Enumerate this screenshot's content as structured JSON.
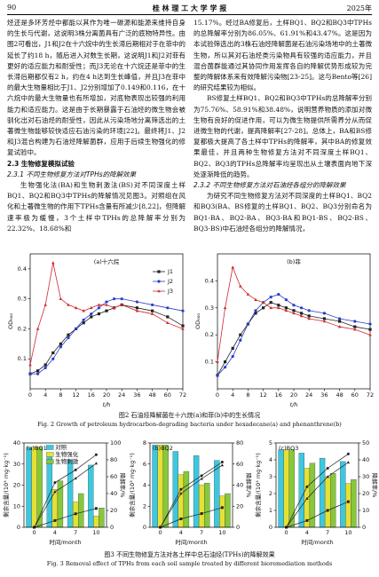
{
  "header": {
    "page": "90",
    "journal": "桂 林 理 工 大 学 学 报",
    "year": "2025年"
  },
  "body": {
    "left_para_1": "烃还是多环芳烃中都能以其作为唯一碳源和能源来维持自身的生长与代谢，这说明3株分离菌具有广泛的底物特异性。由图2可看出，J1和J2在十六烷中的生长滞后期相对于在菲中的延长了约18 h，随后进入对数生长期，这说明J1和J2对菲有更好的适应能力和耐受性；而J3无论在十六烷还是菲中的生长滞后期都仅有2 h，约在4 h达到生长峰值，并且J3在菲中的最大生物量相比于J1、J2分别增加了0.149和0.116，在十六烷中的最大生物量也有所增加，对底物表现出较强的利用能力和适应能力。这是由于长期暴露于石油烃的微生物会被驯化出对石油烃的耐受性，因此从污染场地分离筛选出的土著微生物能够较快适应石油污染的环境[22]。最终将J1、J2和J3混合构建为石油烃降解菌群，应用于后续生物强化的修复试验中。",
    "section_2_3": "2.3 生物修复模拟试验",
    "subsection_2_3_1": "2.3.1 不同生物修复方法对TPHs的降解效果",
    "left_para_2": "生物强化法(BA)和生物刺激法(BS)对不同深度土样BQ1、BQ2和BQ3中TPHs的降解情况见图3。对照组在风化和土著微生物的作用下TPHs含量有所减少[8,22]，但降解速率极为缓慢，3个土样中TPHs的总降解率分别为22.32%、18.68%和",
    "right_para_1": "15.17%。经过BA修复后，土样BQ1、BQ2和BQ3中TPHs的总降解率分别为86.05%、61.91%和43.47%。这是因为本试验筛选出的3株石油烃降解菌是石油污染场地中的土著微生物，所以其对石油烃类污染物具有较强的适应能力，并且混合菌群能通过其协同作用发挥各自的降解优势形成较为完整的降解体系来有效降解污染物[23-25]。这与Bento等[26]的研究结果较为相似。",
    "right_para_2": "BS修复土样BQ1、BQ2和BQ3中TPHs的总降解率分别为75.76%、58.91%和38.48%，说明营养物质的添加对微生物有良好的促进作用，可以为微生物提供所需养分从而促进微生物的代谢，提高降解率[27-28]。总体上，BA和BS修复都极大提高了各土样中TPHs的降解率，其中BA的修复效果最佳，并且两种生物修复方法对不同深度土样BQ1、BQ2、BQ3的TPHs总降解率均呈现出从土壤表面向地下深处逐渐降低的趋势。",
    "subsection_2_3_2": "2.3.2 不同生物修复方法对石油烃各组分的降解效果",
    "right_para_3": "为研究不同生物修复方法对不同深度的土样BQ1、BQ2和BQ3(BA、BS修复的土样BQ1、BQ2、BQ3分别命名为BQ1-BA、BQ2-BA、BQ3-BA和BQ1-BS、BQ2-BS、BQ3-BS)中石油烃各组分的降解情况，"
  },
  "captions": {
    "fig2_cn": "图2 石油烃降解菌在十六烷(a)和菲(b)中的生长情况",
    "fig2_en": "Fig. 2 Growth of petroleum hydrocarbon-degrading bacteria under hexadecane(a) and phenanthrene(b)",
    "fig3_cn": "图3 不同生物修复方法对各土样中总石油烃(TPHs)的降解效果",
    "fig3_en": "Fig. 3 Removal effect of TPHs from each soil sample treated by different bioremediation methods"
  },
  "chart_data": [
    {
      "type": "line",
      "title": "(a)十六烷",
      "x_label": "t/h",
      "y_label": "OD₆₀₀",
      "x": [
        0,
        2,
        4,
        6,
        8,
        10,
        12,
        14,
        16,
        18,
        20,
        22,
        24,
        36,
        48,
        60,
        72
      ],
      "xlim": [
        0,
        72
      ],
      "xticks": [
        0,
        4,
        8,
        12,
        16,
        20,
        24,
        36,
        48,
        60,
        72
      ],
      "ylim": [
        0,
        0.45
      ],
      "yticks": [
        0.1,
        0.2,
        0.3,
        0.4
      ],
      "legend": "upper right",
      "series": [
        {
          "name": "J1",
          "color": "#222222",
          "marker": "square",
          "values": [
            0.05,
            0.06,
            0.08,
            0.12,
            0.15,
            0.18,
            0.2,
            0.22,
            0.24,
            0.25,
            0.26,
            0.27,
            0.28,
            0.27,
            0.26,
            0.24,
            0.21
          ]
        },
        {
          "name": "J2",
          "color": "#2a3cc8",
          "marker": "circle",
          "values": [
            0.05,
            0.05,
            0.07,
            0.1,
            0.14,
            0.17,
            0.2,
            0.23,
            0.25,
            0.27,
            0.29,
            0.3,
            0.3,
            0.29,
            0.28,
            0.27,
            0.26
          ]
        },
        {
          "name": "J3",
          "color": "#d0282c",
          "marker": "triangle",
          "values": [
            0.08,
            0.2,
            0.28,
            0.42,
            0.3,
            0.28,
            0.27,
            0.26,
            0.27,
            0.28,
            0.28,
            0.27,
            0.28,
            0.26,
            0.25,
            0.22,
            0.2
          ]
        }
      ]
    },
    {
      "type": "line",
      "title": "(b)菲",
      "x_label": "t/h",
      "y_label": "OD₆₀₀",
      "x": [
        0,
        2,
        4,
        6,
        8,
        10,
        12,
        14,
        16,
        18,
        20,
        22,
        24,
        36,
        48,
        60,
        72
      ],
      "xlim": [
        0,
        72
      ],
      "xticks": [
        0,
        4,
        8,
        12,
        16,
        20,
        24,
        36,
        48,
        60,
        72
      ],
      "ylim": [
        0,
        0.5
      ],
      "yticks": [
        0.1,
        0.2,
        0.3,
        0.4
      ],
      "series": [
        {
          "color": "#222222",
          "marker": "square",
          "values": [
            0.05,
            0.1,
            0.15,
            0.2,
            0.24,
            0.28,
            0.3,
            0.32,
            0.31,
            0.3,
            0.29,
            0.28,
            0.27,
            0.26,
            0.25,
            0.23,
            0.22
          ]
        },
        {
          "color": "#2a3cc8",
          "marker": "circle",
          "values": [
            0.05,
            0.08,
            0.12,
            0.18,
            0.24,
            0.29,
            0.32,
            0.34,
            0.35,
            0.33,
            0.31,
            0.3,
            0.29,
            0.28,
            0.26,
            0.25,
            0.24
          ]
        },
        {
          "color": "#d0282c",
          "marker": "triangle",
          "values": [
            0.1,
            0.3,
            0.45,
            0.38,
            0.35,
            0.33,
            0.32,
            0.3,
            0.3,
            0.29,
            0.28,
            0.27,
            0.26,
            0.25,
            0.23,
            0.22,
            0.2
          ]
        }
      ]
    },
    {
      "type": "bar_line",
      "title": "(a)BQ1",
      "x_label": "时间/month",
      "y_label": "剩余含量/(10³ mg·kg⁻¹)",
      "y2_label": "降解率/%",
      "categories": [
        "0",
        "4",
        "7",
        "10"
      ],
      "ylim": [
        0,
        40
      ],
      "yticks": [
        0,
        10,
        20,
        30,
        40
      ],
      "y2lim": [
        0,
        100
      ],
      "y2ticks": [
        0,
        20,
        40,
        60,
        80,
        100
      ],
      "legend": "upper left",
      "series": [
        {
          "name": "对照",
          "color": "#3cc8e0",
          "values": [
            38,
            35,
            32,
            29.5
          ]
        },
        {
          "name": "生物强化",
          "color": "#e6e036",
          "values": [
            38,
            18,
            12,
            5.3
          ]
        },
        {
          "name": "生物刺激",
          "color": "#86c83a",
          "values": [
            38,
            22,
            16,
            9.2
          ]
        },
        {
          "axis": "y2",
          "color": "#222222",
          "marker": "square",
          "values": [
            0,
            8,
            16,
            22.32
          ]
        },
        {
          "axis": "y2",
          "color": "#222222",
          "marker": "circle",
          "values": [
            0,
            53,
            68,
            86.05
          ]
        },
        {
          "axis": "y2",
          "color": "#222222",
          "marker": "triangle",
          "values": [
            0,
            42,
            58,
            75.76
          ]
        }
      ]
    },
    {
      "type": "bar_line",
      "title": "(b)BQ2",
      "x_label": "时间/month",
      "y_label": "剩余含量/(10³ mg·kg⁻¹)",
      "y2_label": "降解率/%",
      "categories": [
        "0",
        "4",
        "7",
        "10"
      ],
      "ylim": [
        0,
        8
      ],
      "yticks": [
        0,
        2,
        4,
        6,
        8
      ],
      "y2lim": [
        0,
        80
      ],
      "y2ticks": [
        0,
        20,
        40,
        60,
        80
      ],
      "series": [
        {
          "color": "#3cc8e0",
          "values": [
            7.8,
            7.2,
            6.8,
            6.34
          ]
        },
        {
          "color": "#e6e036",
          "values": [
            7.8,
            5,
            4,
            2.97
          ]
        },
        {
          "color": "#86c83a",
          "values": [
            7.8,
            5.3,
            4.2,
            3.2
          ]
        },
        {
          "axis": "y2",
          "color": "#222222",
          "marker": "square",
          "values": [
            0,
            8,
            13,
            18.68
          ]
        },
        {
          "axis": "y2",
          "color": "#222222",
          "marker": "circle",
          "values": [
            0,
            36,
            49,
            61.91
          ]
        },
        {
          "axis": "y2",
          "color": "#222222",
          "marker": "triangle",
          "values": [
            0,
            32,
            46,
            58.91
          ]
        }
      ]
    },
    {
      "type": "bar_line",
      "title": "(c)BQ3",
      "x_label": "时间/month",
      "y_label": "剩余含量/(10³ mg·kg⁻¹)",
      "y2_label": "降解率/%",
      "categories": [
        "0",
        "4",
        "7",
        "10"
      ],
      "ylim": [
        0,
        5
      ],
      "yticks": [
        0,
        1,
        2,
        3,
        4,
        5
      ],
      "y2lim": [
        0,
        50
      ],
      "y2ticks": [
        0,
        10,
        20,
        30,
        40,
        50
      ],
      "series": [
        {
          "color": "#3cc8e0",
          "values": [
            4.6,
            4.4,
            4.1,
            3.9
          ]
        },
        {
          "color": "#e6e036",
          "values": [
            4.6,
            3.5,
            3,
            2.6
          ]
        },
        {
          "color": "#86c83a",
          "values": [
            4.6,
            3.8,
            3.2,
            2.83
          ]
        },
        {
          "axis": "y2",
          "color": "#222222",
          "marker": "square",
          "values": [
            0,
            4,
            10,
            15.17
          ]
        },
        {
          "axis": "y2",
          "color": "#222222",
          "marker": "circle",
          "values": [
            0,
            24,
            35,
            43.47
          ]
        },
        {
          "axis": "y2",
          "color": "#222222",
          "marker": "triangle",
          "values": [
            0,
            17,
            30,
            38.48
          ]
        }
      ]
    }
  ]
}
